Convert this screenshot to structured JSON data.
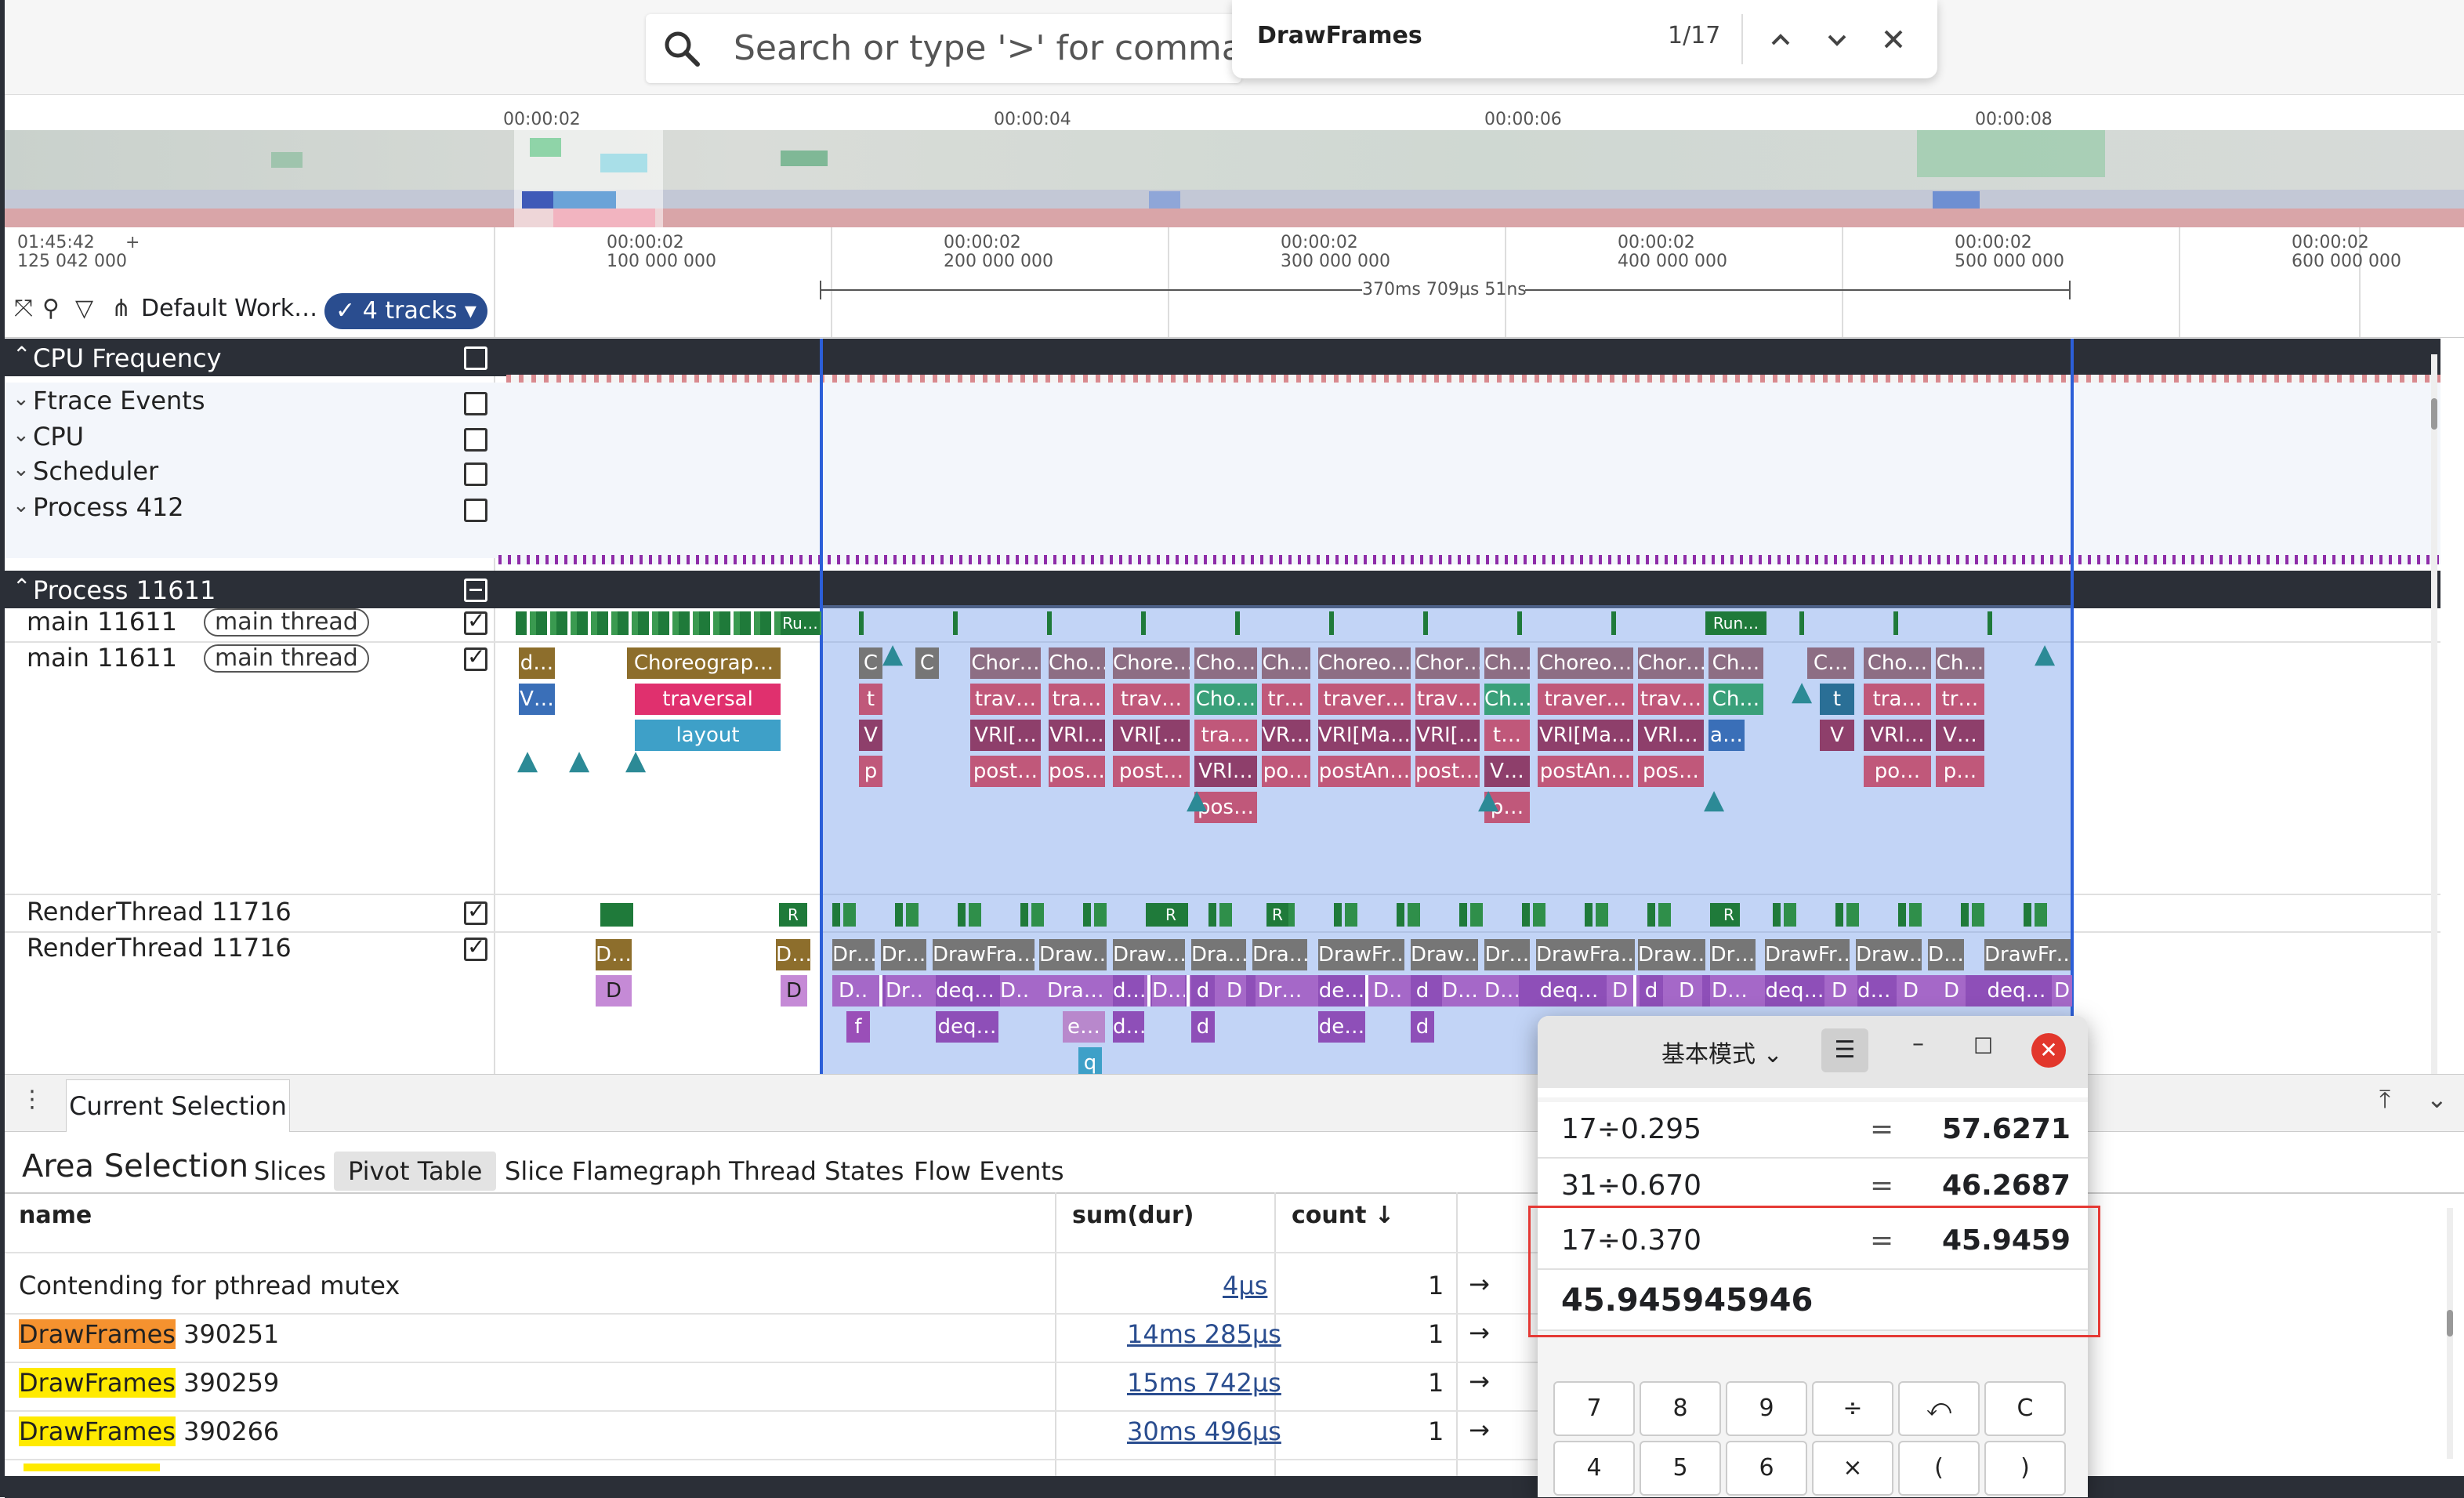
{
  "search": {
    "placeholder": "Search or type '>' for commands or '"
  },
  "find": {
    "query": "DrawFrames",
    "count": "1/17"
  },
  "overview_ticks": [
    "00:00:02",
    "00:00:04",
    "00:00:06",
    "00:00:08"
  ],
  "ruler": {
    "origin": "01:45:42\n125 042 000",
    "plus": "+",
    "ticks": [
      "00:00:02\n100 000 000",
      "00:00:02\n200 000 000",
      "00:00:02\n300 000 000",
      "00:00:02\n400 000 000",
      "00:00:02\n500 000 000",
      "00:00:02\n600 000 000"
    ],
    "span_label": "370ms 709µs 51ns"
  },
  "toolbar": {
    "workspace": "Default Work…",
    "tracks_chip": "4 tracks"
  },
  "groups": {
    "cpu_frequency": "CPU Frequency",
    "ftrace_events": "Ftrace Events",
    "cpu": "CPU",
    "scheduler": "Scheduler",
    "process_412": "Process 412",
    "process_11611": "Process 11611"
  },
  "tracks": {
    "main1": "main 11611",
    "main1_tag": "main thread",
    "main2": "main 11611",
    "main2_tag": "main thread",
    "render1": "RenderThread 11716",
    "render2": "RenderThread 11716"
  },
  "slices": {
    "main_state": [
      "Ru…",
      "Run…"
    ],
    "main_row1": [
      "d…",
      "Choreograp…",
      "C",
      "C",
      "Chor…",
      "Cho…",
      "Chore…",
      "Cho…",
      "Ch…",
      "Choreo…",
      "Chor…",
      "Ch…",
      "Choreo…",
      "Chor…",
      "Ch…",
      "C…",
      "Cho…",
      "Ch…"
    ],
    "main_row2": [
      "V…",
      "traversal",
      "t",
      "trav…",
      "tra…",
      "trav…",
      "Cho…",
      "tr…",
      "traver…",
      "trav…",
      "Ch…",
      "traver…",
      "trav…",
      "Ch…",
      "t",
      "tra…",
      "tr…"
    ],
    "main_row3": [
      "layout",
      "V",
      "VRI[…",
      "VRI…",
      "VRI[…",
      "tra…",
      "VR…",
      "VRI[Ma…",
      "VRI[…",
      "t…",
      "VRI[Ma…",
      "VRI…",
      "a…",
      "V",
      "VRI…",
      "V…"
    ],
    "main_row4": [
      "p",
      "post…",
      "pos…",
      "post…",
      "VRI…",
      "po…",
      "postAn…",
      "post…",
      "V…",
      "postAn…",
      "pos…",
      "po…",
      "p…"
    ],
    "main_row5": [
      "pos…",
      "p…"
    ],
    "render_state": [
      "R",
      "R",
      "R",
      "R"
    ],
    "render_row1": [
      "D…",
      "D…",
      "Dr…",
      "Dr…",
      "DrawFra…",
      "Draw…",
      "Draw…",
      "Dra…",
      "Dra…",
      "DrawFr…",
      "Draw…",
      "Dr…",
      "DrawFra…",
      "Draw…",
      "Dr…",
      "DrawFr…",
      "Draw…",
      "D…",
      "DrawFr…"
    ],
    "render_row2": [
      "D",
      "D",
      "D…",
      "Dr…",
      "deq…",
      "D…",
      "Dra…",
      "d…",
      "D…",
      "d",
      "D",
      "Dr…",
      "de…",
      "D…",
      "d",
      "D…",
      "D…",
      "deq…",
      "D",
      "d",
      "D",
      "D…",
      "deq…",
      "D",
      "d…",
      "D",
      "D",
      "deq…",
      "D"
    ],
    "render_row3": [
      "f",
      "deq…",
      "e…",
      "d…",
      "d",
      "de…",
      "d"
    ],
    "render_row4": [
      "q"
    ]
  },
  "bottom": {
    "tab": "Current Selection",
    "title": "Area Selection",
    "subtabs": [
      "Slices",
      "Pivot Table",
      "Slice Flamegraph",
      "Thread States",
      "Flow Events"
    ],
    "columns": {
      "name": "name",
      "sum": "sum(dur)",
      "count": "count ↓"
    },
    "rows": [
      {
        "name": "Contending for pthread mutex",
        "name_hl": "",
        "name_rest": "",
        "sum": "4µs",
        "count": "1"
      },
      {
        "name": "",
        "name_hl": "DrawFrames",
        "name_rest": " 390251",
        "sum": "14ms 285µs",
        "count": "1"
      },
      {
        "name": "",
        "name_hl": "DrawFrames",
        "name_rest": " 390259",
        "sum": "15ms 742µs",
        "count": "1"
      },
      {
        "name": "",
        "name_hl": "DrawFrames",
        "name_rest": " 390266",
        "sum": "30ms 496µs",
        "count": "1"
      }
    ],
    "arrow": "→"
  },
  "calculator": {
    "mode": "基本模式",
    "history": [
      {
        "expr": "17÷0.295",
        "eq": "=",
        "res": "57.6271"
      },
      {
        "expr": "31÷0.670",
        "eq": "=",
        "res": "46.2687"
      },
      {
        "expr": "17÷0.370",
        "eq": "=",
        "res": "45.9459"
      }
    ],
    "current": "45.945945946",
    "keys": [
      "7",
      "8",
      "9",
      "÷",
      "⤺",
      "C",
      "4",
      "5",
      "6",
      "×",
      "(",
      ")"
    ]
  },
  "colors": {
    "selection": "#2c5fd8",
    "chip": "#2a4d8f",
    "choreographer": "#8d6e2c",
    "traversal": "#e0306e",
    "layout": "#3ea0c8",
    "vri": "#8e3f6b",
    "post": "#c0587a",
    "drawframe": "#767676",
    "dequeue": "#a568c8",
    "thread_green": "#1f7a3a",
    "highlight_orange": "#f5922f",
    "highlight_yellow": "#ffea00",
    "calc_close": "#e2372c"
  }
}
